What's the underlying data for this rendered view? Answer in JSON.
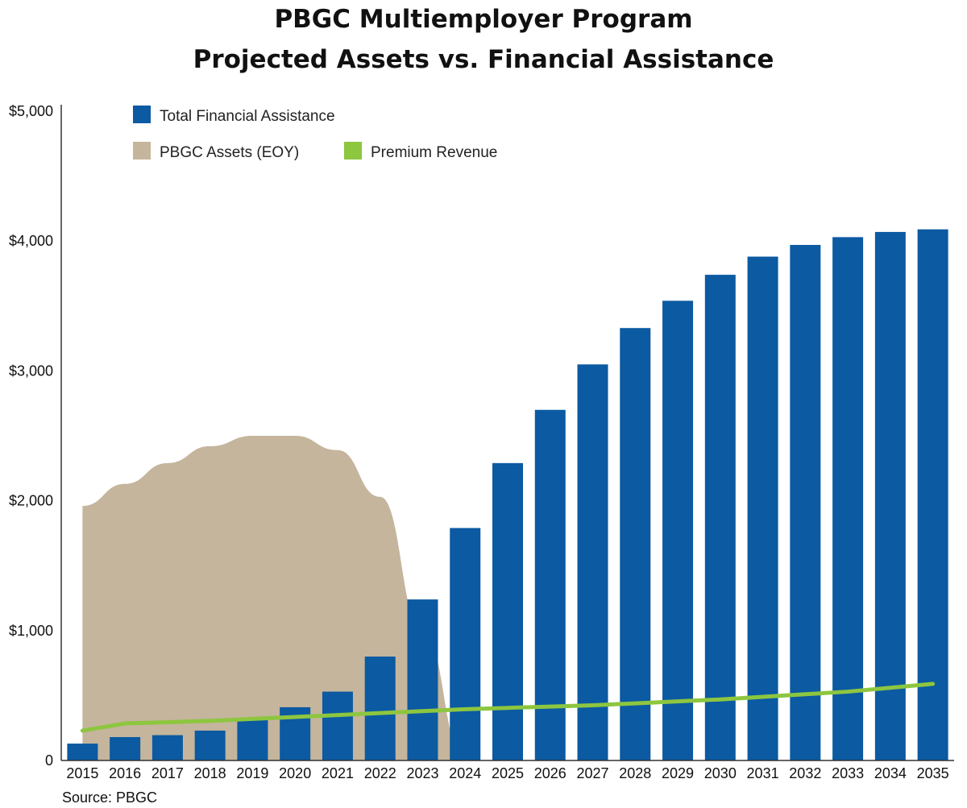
{
  "chart_data": {
    "type": "bar",
    "title": "PBGC Multiemployer Program",
    "subtitle": "Projected Assets vs. Financial Assistance",
    "xlabel": "",
    "ylabel": "",
    "ylim": [
      0,
      5000
    ],
    "y_ticks": [
      0,
      1000,
      2000,
      3000,
      4000,
      5000
    ],
    "y_tick_labels": [
      "0",
      "$1,000",
      "$2,000",
      "$3,000",
      "$4,000",
      "$5,000"
    ],
    "categories": [
      "2015",
      "2016",
      "2017",
      "2018",
      "2019",
      "2020",
      "2021",
      "2022",
      "2023",
      "2024",
      "2025",
      "2026",
      "2027",
      "2028",
      "2029",
      "2030",
      "2031",
      "2032",
      "2033",
      "2034",
      "2035"
    ],
    "series": [
      {
        "name": "Total Financial Assistance",
        "kind": "bar",
        "color": "#0b5aa2",
        "values": [
          130,
          180,
          195,
          230,
          310,
          410,
          530,
          800,
          1240,
          1790,
          2290,
          2700,
          3050,
          3330,
          3540,
          3740,
          3880,
          3970,
          4030,
          4070,
          4090
        ]
      },
      {
        "name": "PBGC Assets (EOY)",
        "kind": "area",
        "color": "#c4b59c",
        "values": [
          1960,
          2130,
          2290,
          2420,
          2500,
          2500,
          2390,
          2030,
          1000,
          0,
          null,
          null,
          null,
          null,
          null,
          null,
          null,
          null,
          null,
          null,
          null
        ]
      },
      {
        "name": "Premium Revenue",
        "kind": "line",
        "color": "#8dc63f",
        "values": [
          230,
          285,
          295,
          305,
          320,
          335,
          350,
          365,
          380,
          395,
          405,
          415,
          425,
          440,
          455,
          470,
          490,
          510,
          530,
          560,
          590
        ]
      }
    ],
    "grid": false,
    "legend_position": "top-left"
  },
  "source": "Source: PBGC"
}
